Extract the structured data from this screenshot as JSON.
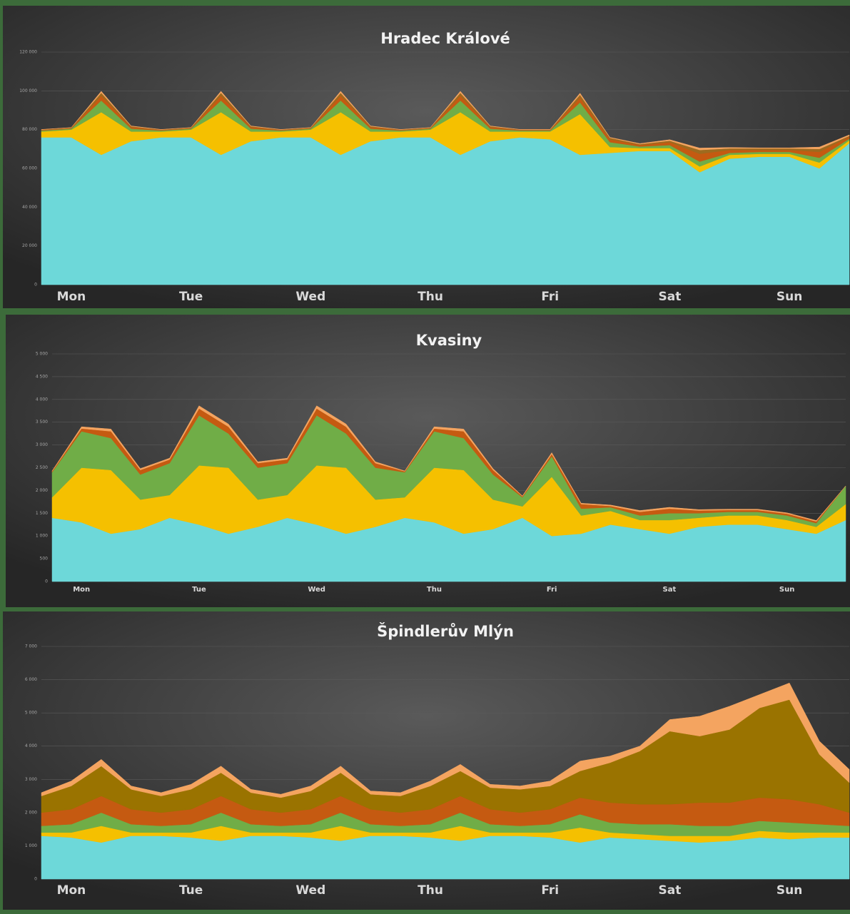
{
  "chart_data": [
    {
      "type": "area",
      "stacked": true,
      "title": "Hradec Králové",
      "categories": [
        null,
        "Mon",
        null,
        null,
        null,
        "Tue",
        null,
        null,
        null,
        "Wed",
        null,
        null,
        null,
        "Thu",
        null,
        null,
        null,
        "Fri",
        null,
        null,
        null,
        "Sat",
        null,
        null,
        null,
        "Sun",
        null,
        null
      ],
      "ylim": [
        0,
        120000
      ],
      "yticks": [
        {
          "value": 0,
          "label": "0"
        },
        {
          "value": 20000,
          "label": "20 000"
        },
        {
          "value": 40000,
          "label": "40 000"
        },
        {
          "value": 60000,
          "label": "60 000"
        },
        {
          "value": 80000,
          "label": "80 000"
        },
        {
          "value": 100000,
          "label": "100 000"
        },
        {
          "value": 120000,
          "label": "120 000"
        }
      ],
      "grid": true,
      "series": [
        {
          "color": "#6dd8d9",
          "values": [
            76000,
            76000,
            67000,
            74000,
            76000,
            76000,
            67000,
            74000,
            76000,
            76000,
            67000,
            74000,
            76000,
            76000,
            67000,
            74000,
            76000,
            75000,
            67000,
            68000,
            69000,
            69000,
            58000,
            65000,
            66000,
            66000,
            60000,
            73000
          ]
        },
        {
          "color": "#f5c000",
          "values": [
            3000,
            4000,
            22000,
            5000,
            3000,
            4000,
            22000,
            5000,
            3000,
            4000,
            22000,
            5000,
            3000,
            4000,
            22000,
            5000,
            3000,
            4000,
            21000,
            3000,
            1500,
            1500,
            3000,
            2000,
            1500,
            1500,
            3000,
            1500
          ]
        },
        {
          "color": "#70ad47",
          "values": [
            500,
            500,
            6000,
            1500,
            500,
            500,
            6000,
            1500,
            500,
            500,
            6000,
            1500,
            500,
            500,
            6000,
            1500,
            500,
            500,
            6000,
            2500,
            800,
            1500,
            2500,
            1000,
            1000,
            1000,
            2500,
            800
          ]
        },
        {
          "color": "#c55a11",
          "values": [
            300,
            300,
            2500,
            800,
            300,
            300,
            2500,
            800,
            300,
            300,
            2500,
            800,
            300,
            300,
            2500,
            800,
            300,
            300,
            2500,
            1500,
            800,
            1500,
            4000,
            1500,
            1000,
            1000,
            3000,
            1000
          ]
        },
        {
          "color": "#9e6b1f",
          "values": [
            200,
            200,
            1500,
            400,
            200,
            200,
            1500,
            400,
            200,
            200,
            1500,
            400,
            200,
            200,
            1500,
            400,
            200,
            200,
            1500,
            800,
            400,
            800,
            2000,
            800,
            800,
            800,
            1500,
            500
          ]
        },
        {
          "color": "#f4a460",
          "values": [
            100,
            100,
            800,
            200,
            100,
            100,
            800,
            200,
            100,
            100,
            800,
            200,
            100,
            100,
            800,
            200,
            100,
            100,
            800,
            200,
            300,
            500,
            1000,
            500,
            300,
            300,
            1000,
            500
          ]
        }
      ]
    },
    {
      "type": "area",
      "stacked": true,
      "title": "Kvasiny",
      "categories": [
        null,
        "Mon",
        null,
        null,
        null,
        "Tue",
        null,
        null,
        null,
        "Wed",
        null,
        null,
        null,
        "Thu",
        null,
        null,
        null,
        "Fri",
        null,
        null,
        null,
        "Sat",
        null,
        null,
        null,
        "Sun",
        null,
        null
      ],
      "ylim": [
        0,
        5000
      ],
      "yticks": [
        {
          "value": 0,
          "label": "0"
        },
        {
          "value": 500,
          "label": "500"
        },
        {
          "value": 1000,
          "label": "1 000"
        },
        {
          "value": 1500,
          "label": "1 500"
        },
        {
          "value": 2000,
          "label": "2 000"
        },
        {
          "value": 2500,
          "label": "2 500"
        },
        {
          "value": 3000,
          "label": "3 000"
        },
        {
          "value": 3500,
          "label": "3 500"
        },
        {
          "value": 4000,
          "label": "4 000"
        },
        {
          "value": 4500,
          "label": "4 500"
        },
        {
          "value": 5000,
          "label": "5 000"
        }
      ],
      "grid": true,
      "series": [
        {
          "color": "#6dd8d9",
          "values": [
            1400,
            1300,
            1050,
            1150,
            1400,
            1250,
            1050,
            1200,
            1400,
            1250,
            1050,
            1200,
            1400,
            1300,
            1050,
            1150,
            1400,
            1000,
            1050,
            1250,
            1150,
            1050,
            1200,
            1250,
            1250,
            1150,
            1050,
            1350
          ]
        },
        {
          "color": "#f5c000",
          "values": [
            450,
            1200,
            1400,
            650,
            500,
            1300,
            1450,
            600,
            500,
            1300,
            1450,
            600,
            450,
            1200,
            1400,
            650,
            250,
            1300,
            400,
            300,
            200,
            300,
            200,
            200,
            200,
            200,
            150,
            350
          ]
        },
        {
          "color": "#70ad47",
          "values": [
            550,
            800,
            700,
            550,
            700,
            1100,
            750,
            700,
            700,
            1100,
            750,
            700,
            550,
            800,
            700,
            550,
            200,
            450,
            150,
            80,
            100,
            150,
            100,
            80,
            80,
            100,
            80,
            400
          ]
        },
        {
          "color": "#c55a11",
          "values": [
            20,
            60,
            150,
            100,
            80,
            150,
            150,
            100,
            80,
            150,
            150,
            100,
            20,
            60,
            150,
            100,
            20,
            50,
            100,
            30,
            80,
            100,
            60,
            40,
            40,
            40,
            40,
            0
          ]
        },
        {
          "color": "#f4a460",
          "values": [
            10,
            40,
            50,
            30,
            30,
            60,
            60,
            30,
            30,
            60,
            60,
            30,
            10,
            40,
            50,
            30,
            10,
            30,
            20,
            20,
            30,
            30,
            20,
            20,
            20,
            20,
            20,
            0
          ]
        }
      ]
    },
    {
      "type": "area",
      "stacked": true,
      "title": "Špindlerův Mlýn",
      "categories": [
        null,
        "Mon",
        null,
        null,
        null,
        "Tue",
        null,
        null,
        null,
        "Wed",
        null,
        null,
        null,
        "Thu",
        null,
        null,
        null,
        "Fri",
        null,
        null,
        null,
        "Sat",
        null,
        null,
        null,
        "Sun",
        null,
        null
      ],
      "ylim": [
        0,
        7000
      ],
      "yticks": [
        {
          "value": 0,
          "label": "0"
        },
        {
          "value": 1000,
          "label": "1 000"
        },
        {
          "value": 2000,
          "label": "2 000"
        },
        {
          "value": 3000,
          "label": "3 000"
        },
        {
          "value": 4000,
          "label": "4 000"
        },
        {
          "value": 5000,
          "label": "5 000"
        },
        {
          "value": 6000,
          "label": "6 000"
        },
        {
          "value": 7000,
          "label": "7 000"
        }
      ],
      "grid": true,
      "series": [
        {
          "color": "#6dd8d9",
          "values": [
            1300,
            1250,
            1100,
            1300,
            1300,
            1250,
            1150,
            1300,
            1300,
            1250,
            1150,
            1300,
            1300,
            1250,
            1150,
            1300,
            1300,
            1250,
            1100,
            1250,
            1200,
            1150,
            1100,
            1150,
            1250,
            1200,
            1250,
            1250
          ]
        },
        {
          "color": "#f5c000",
          "values": [
            100,
            150,
            500,
            100,
            100,
            150,
            450,
            100,
            100,
            150,
            450,
            100,
            100,
            150,
            450,
            100,
            100,
            150,
            450,
            150,
            150,
            150,
            200,
            150,
            200,
            200,
            150,
            150
          ]
        },
        {
          "color": "#70ad47",
          "values": [
            200,
            250,
            400,
            250,
            200,
            250,
            400,
            250,
            200,
            250,
            400,
            250,
            200,
            250,
            400,
            250,
            200,
            250,
            400,
            300,
            300,
            350,
            300,
            300,
            300,
            300,
            250,
            200
          ]
        },
        {
          "color": "#c55a11",
          "values": [
            400,
            450,
            500,
            450,
            400,
            450,
            500,
            450,
            400,
            450,
            500,
            450,
            400,
            450,
            500,
            450,
            400,
            450,
            500,
            600,
            600,
            600,
            700,
            700,
            700,
            700,
            600,
            400
          ]
        },
        {
          "color": "#9a7300",
          "values": [
            500,
            700,
            900,
            600,
            500,
            600,
            700,
            500,
            450,
            550,
            700,
            450,
            500,
            700,
            750,
            650,
            700,
            700,
            800,
            1200,
            1600,
            2200,
            2000,
            2200,
            2700,
            3000,
            1500,
            900
          ]
        },
        {
          "color": "#f4a460",
          "values": [
            100,
            150,
            200,
            100,
            100,
            150,
            200,
            100,
            100,
            150,
            200,
            100,
            100,
            150,
            200,
            100,
            100,
            150,
            300,
            200,
            150,
            350,
            600,
            700,
            400,
            500,
            400,
            400
          ]
        }
      ]
    }
  ]
}
